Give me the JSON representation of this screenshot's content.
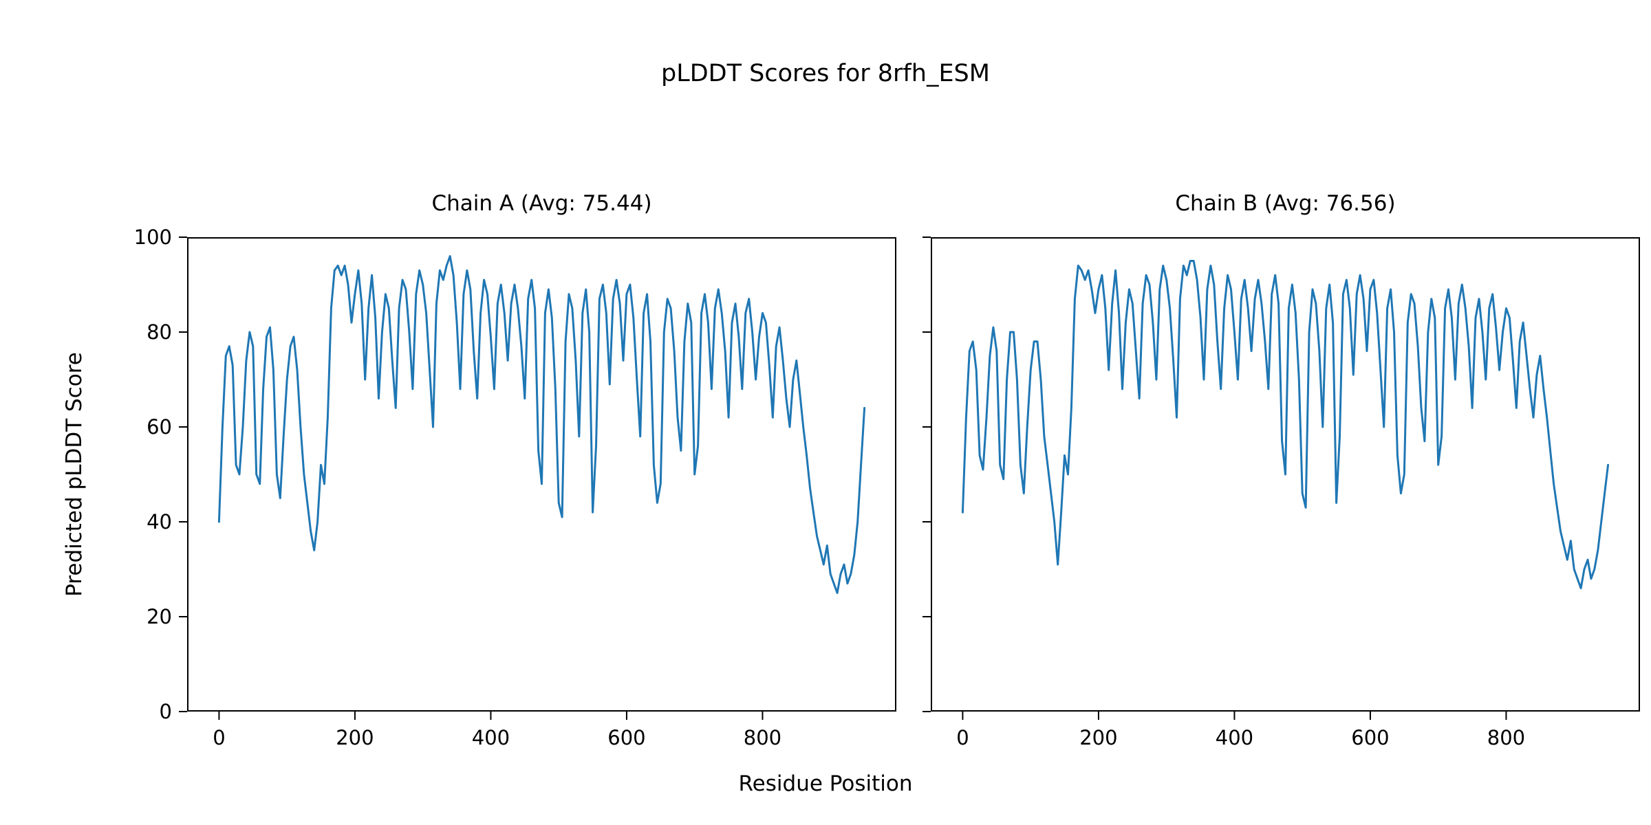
{
  "figure": {
    "title": "pLDDT Scores for 8rfh_ESM",
    "xlabel": "Residue Position",
    "ylabel": "Predicted pLDDT Score",
    "background": "#ffffff",
    "line_color": "#1f77b4"
  },
  "chart_data": [
    {
      "type": "line",
      "title": "Chain A (Avg: 75.44)",
      "series_name": "Chain A pLDDT",
      "avg": 75.44,
      "color": "#1f77b4",
      "xlim": [
        -47,
        997
      ],
      "ylim": [
        0,
        100
      ],
      "xticks": [
        0,
        200,
        400,
        600,
        800
      ],
      "yticks": [
        0,
        20,
        40,
        60,
        80,
        100
      ],
      "show_ytick_labels": true,
      "grid": false,
      "x_start": 0,
      "x_step": 5,
      "values": [
        40,
        60,
        75,
        77,
        73,
        52,
        50,
        60,
        74,
        80,
        77,
        50,
        48,
        68,
        79,
        81,
        72,
        50,
        45,
        58,
        70,
        77,
        79,
        72,
        60,
        50,
        44,
        38,
        34,
        40,
        52,
        48,
        62,
        85,
        93,
        94,
        92,
        94,
        90,
        82,
        88,
        93,
        86,
        70,
        85,
        92,
        83,
        66,
        80,
        88,
        85,
        74,
        64,
        85,
        91,
        89,
        80,
        68,
        88,
        93,
        90,
        84,
        72,
        60,
        86,
        93,
        91,
        94,
        96,
        92,
        82,
        68,
        88,
        93,
        89,
        76,
        66,
        84,
        91,
        88,
        79,
        68,
        86,
        90,
        84,
        74,
        86,
        90,
        85,
        77,
        66,
        87,
        91,
        85,
        55,
        48,
        84,
        89,
        83,
        68,
        44,
        41,
        78,
        88,
        85,
        74,
        58,
        84,
        89,
        80,
        42,
        56,
        87,
        90,
        84,
        69,
        87,
        91,
        86,
        74,
        88,
        90,
        83,
        70,
        58,
        84,
        88,
        78,
        52,
        44,
        48,
        80,
        87,
        85,
        76,
        62,
        55,
        78,
        86,
        82,
        50,
        56,
        84,
        88,
        82,
        68,
        85,
        89,
        84,
        76,
        62,
        82,
        86,
        79,
        68,
        84,
        87,
        80,
        70,
        79,
        84,
        82,
        73,
        62,
        77,
        81,
        74,
        66,
        60,
        70,
        74,
        67,
        60,
        54,
        47,
        42,
        37,
        34,
        31,
        35,
        29,
        27,
        25,
        29,
        31,
        27,
        29,
        33,
        40,
        52,
        64
      ]
    },
    {
      "type": "line",
      "title": "Chain B (Avg: 76.56)",
      "series_name": "Chain B pLDDT",
      "avg": 76.56,
      "color": "#1f77b4",
      "xlim": [
        -47,
        997
      ],
      "ylim": [
        0,
        100
      ],
      "xticks": [
        0,
        200,
        400,
        600,
        800
      ],
      "yticks": [
        0,
        20,
        40,
        60,
        80,
        100
      ],
      "show_ytick_labels": false,
      "grid": false,
      "x_start": 0,
      "x_step": 5,
      "values": [
        42,
        62,
        76,
        78,
        72,
        54,
        51,
        62,
        75,
        81,
        76,
        52,
        49,
        70,
        80,
        80,
        70,
        52,
        46,
        60,
        72,
        78,
        78,
        70,
        58,
        52,
        46,
        40,
        31,
        42,
        54,
        50,
        64,
        87,
        94,
        93,
        91,
        93,
        89,
        84,
        89,
        92,
        85,
        72,
        86,
        93,
        84,
        68,
        82,
        89,
        86,
        76,
        66,
        86,
        92,
        90,
        82,
        70,
        89,
        94,
        91,
        85,
        74,
        62,
        87,
        94,
        92,
        95,
        95,
        91,
        83,
        70,
        89,
        94,
        90,
        78,
        68,
        85,
        92,
        89,
        80,
        70,
        87,
        91,
        85,
        76,
        87,
        91,
        86,
        78,
        68,
        88,
        92,
        86,
        57,
        50,
        85,
        90,
        84,
        70,
        46,
        43,
        80,
        89,
        86,
        76,
        60,
        85,
        90,
        82,
        44,
        58,
        88,
        91,
        85,
        71,
        88,
        92,
        87,
        76,
        89,
        91,
        84,
        72,
        60,
        85,
        89,
        80,
        54,
        46,
        50,
        82,
        88,
        86,
        77,
        64,
        57,
        80,
        87,
        83,
        52,
        58,
        85,
        89,
        83,
        70,
        86,
        90,
        85,
        77,
        64,
        83,
        87,
        80,
        70,
        85,
        88,
        81,
        72,
        80,
        85,
        83,
        74,
        64,
        78,
        82,
        75,
        68,
        62,
        71,
        75,
        68,
        62,
        55,
        48,
        43,
        38,
        35,
        32,
        36,
        30,
        28,
        26,
        30,
        32,
        28,
        30,
        34,
        40,
        46,
        52
      ]
    }
  ]
}
